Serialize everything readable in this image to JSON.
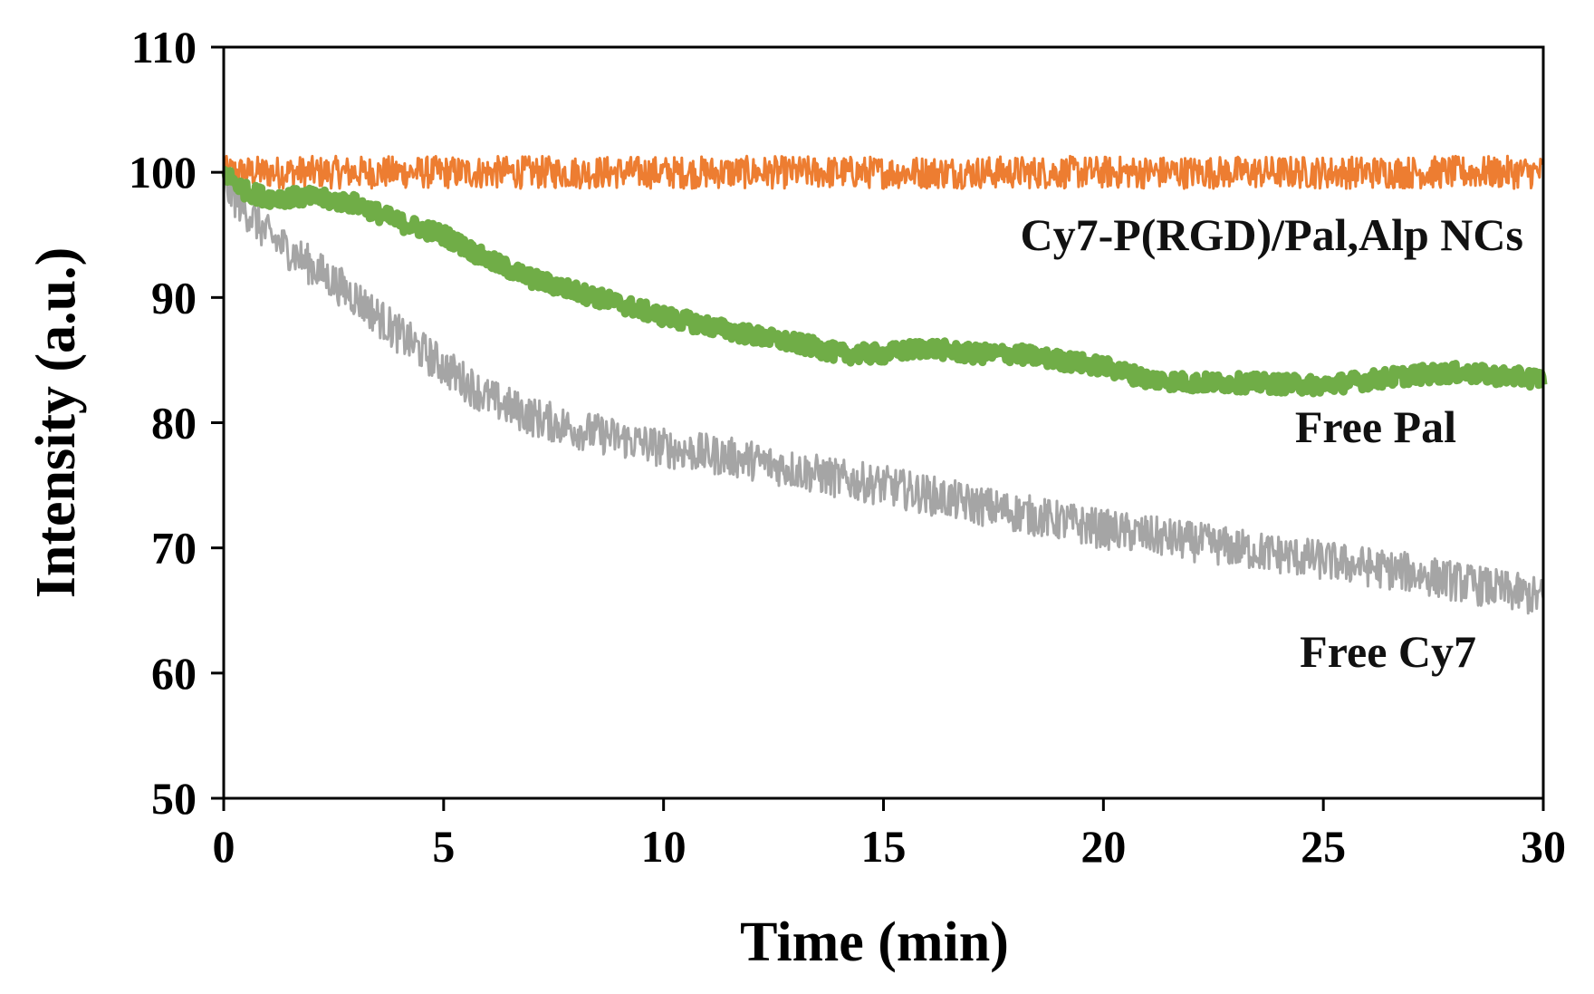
{
  "chart_data": {
    "type": "line",
    "title": "",
    "xlabel": "Time (min)",
    "ylabel": "Intensity (a.u.)",
    "xlim": [
      0,
      30
    ],
    "ylim": [
      50,
      110
    ],
    "xticks": [
      0,
      5,
      10,
      15,
      20,
      25,
      30
    ],
    "yticks": [
      50,
      60,
      70,
      80,
      90,
      100,
      110
    ],
    "xtick_labels": [
      "0",
      "5",
      "10",
      "15",
      "20",
      "25",
      "30"
    ],
    "ytick_labels": [
      "50",
      "60",
      "70",
      "80",
      "90",
      "100",
      "110"
    ],
    "grid": false,
    "series": [
      {
        "name": "Cy7-P(RGD)/Pal,Alp  NCs",
        "color": "#ED7D31",
        "noise": 1.3,
        "x": [
          0,
          2,
          5,
          10,
          15,
          20,
          25,
          30
        ],
        "values": [
          100,
          100,
          100,
          100,
          100,
          100,
          100,
          100
        ]
      },
      {
        "name": "Free Pal",
        "color": "#70AD47",
        "noise": 0.7,
        "x": [
          0,
          0.5,
          1,
          2,
          3,
          4,
          5,
          6,
          7,
          8,
          10,
          12,
          13.5,
          14,
          15,
          16,
          17,
          18,
          20,
          21,
          22,
          23,
          25,
          27,
          28,
          30
        ],
        "values": [
          100,
          98.5,
          98,
          98,
          97.5,
          96,
          95,
          93,
          91.5,
          90.5,
          88.5,
          87,
          86,
          85.5,
          85.5,
          86,
          85.5,
          85.5,
          84.5,
          83.5,
          83.2,
          83.2,
          83,
          83.8,
          84,
          83.5
        ]
      },
      {
        "name": "Free Cy7",
        "color": "#A5A5A5",
        "noise": 1.6,
        "x": [
          0,
          0.5,
          1,
          2,
          3,
          4,
          5,
          6,
          7,
          8,
          10,
          12,
          14,
          15,
          17,
          20,
          22,
          25,
          27,
          30
        ],
        "values": [
          99,
          97,
          95,
          92.5,
          90,
          87,
          84.5,
          82,
          80.5,
          79.5,
          78,
          77,
          75.5,
          75,
          73.5,
          71.5,
          70.5,
          69,
          68,
          66
        ]
      }
    ],
    "annotations": [
      {
        "series": "Cy7-P(RGD)/Pal,Alp  NCs",
        "text": "Cy7-P(RGD)/Pal,Alp  NCs",
        "anchor": "right, below orange line near x≈17–30"
      },
      {
        "series": "Free Pal",
        "text": "Free Pal",
        "anchor": "below green line near x≈24–27"
      },
      {
        "series": "Free Cy7",
        "text": "Free Cy7",
        "anchor": "below gray line near x≈24–27"
      }
    ]
  }
}
